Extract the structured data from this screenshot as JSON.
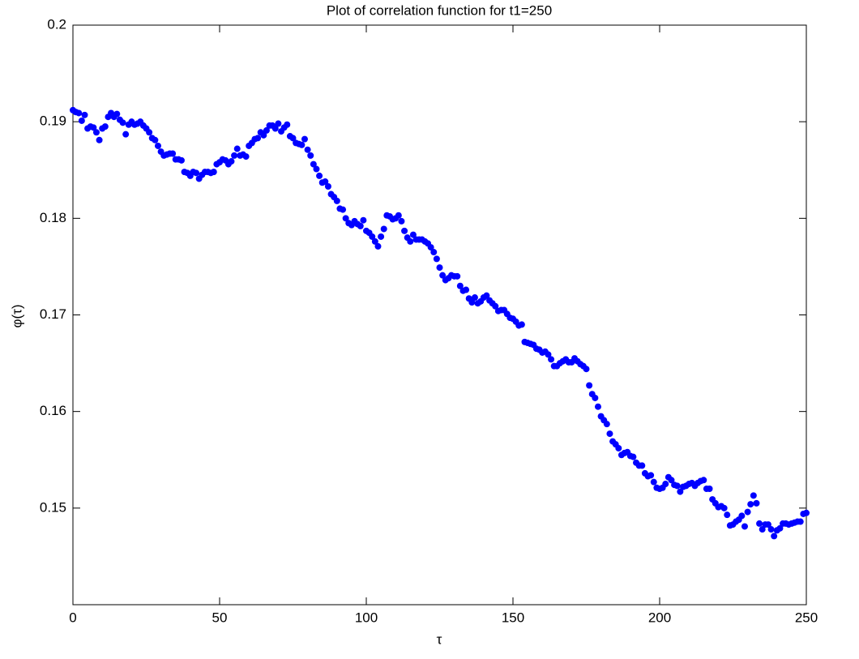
{
  "chart_data": {
    "type": "scatter",
    "title": "Plot of correlation function for t1=250",
    "x_label": "τ",
    "y_label": "φ(τ)",
    "xlim": [
      0,
      250
    ],
    "ylim": [
      0.14,
      0.2
    ],
    "xticks": [
      0,
      50,
      100,
      150,
      200,
      250
    ],
    "yticks": [
      0.15,
      0.16,
      0.17,
      0.18,
      0.19,
      0.2
    ],
    "grid": false,
    "series": [
      {
        "color": "#0000ff",
        "x": [
          0,
          1,
          2,
          3,
          4,
          5,
          6,
          7,
          8,
          9,
          10,
          11,
          12,
          13,
          14,
          15,
          16,
          17,
          18,
          19,
          20,
          21,
          22,
          23,
          24,
          25,
          26,
          27,
          28,
          29,
          30,
          31,
          32,
          33,
          34,
          35,
          36,
          37,
          38,
          39,
          40,
          41,
          42,
          43,
          44,
          45,
          46,
          47,
          48,
          49,
          50,
          51,
          52,
          53,
          54,
          55,
          56,
          57,
          58,
          59,
          60,
          61,
          62,
          63,
          64,
          65,
          66,
          67,
          68,
          69,
          70,
          71,
          72,
          73,
          74,
          75,
          76,
          77,
          78,
          79,
          80,
          81,
          82,
          83,
          84,
          85,
          86,
          87,
          88,
          89,
          90,
          91,
          92,
          93,
          94,
          95,
          96,
          97,
          98,
          99,
          100,
          101,
          102,
          103,
          104,
          105,
          106,
          107,
          108,
          109,
          110,
          111,
          112,
          113,
          114,
          115,
          116,
          117,
          118,
          119,
          120,
          121,
          122,
          123,
          124,
          125,
          126,
          127,
          128,
          129,
          130,
          131,
          132,
          133,
          134,
          135,
          136,
          137,
          138,
          139,
          140,
          141,
          142,
          143,
          144,
          145,
          146,
          147,
          148,
          149,
          150,
          151,
          152,
          153,
          154,
          155,
          156,
          157,
          158,
          159,
          160,
          161,
          162,
          163,
          164,
          165,
          166,
          167,
          168,
          169,
          170,
          171,
          172,
          173,
          174,
          175,
          176,
          177,
          178,
          179,
          180,
          181,
          182,
          183,
          184,
          185,
          186,
          187,
          188,
          189,
          190,
          191,
          192,
          193,
          194,
          195,
          196,
          197,
          198,
          199,
          200,
          201,
          202,
          203,
          204,
          205,
          206,
          207,
          208,
          209,
          210,
          211,
          212,
          213,
          214,
          215,
          216,
          217,
          218,
          219,
          220,
          221,
          222,
          223,
          224,
          225,
          226,
          227,
          228,
          229,
          230,
          231,
          232,
          233,
          234,
          235,
          236,
          237,
          238,
          239,
          240,
          241,
          242,
          243,
          244,
          245,
          246,
          247,
          248,
          249,
          250
        ],
        "values": [
          0.1912,
          0.191,
          0.1909,
          0.1901,
          0.1907,
          0.1893,
          0.1895,
          0.1894,
          0.1889,
          0.1881,
          0.1893,
          0.1895,
          0.1905,
          0.1909,
          0.1905,
          0.1908,
          0.1902,
          0.1899,
          0.1887,
          0.1897,
          0.19,
          0.1897,
          0.1898,
          0.19,
          0.1896,
          0.1893,
          0.1889,
          0.1883,
          0.1881,
          0.1875,
          0.1869,
          0.1865,
          0.1866,
          0.1867,
          0.1867,
          0.1861,
          0.1861,
          0.186,
          0.1848,
          0.1847,
          0.1844,
          0.1848,
          0.1847,
          0.1841,
          0.1845,
          0.1848,
          0.1848,
          0.1847,
          0.1848,
          0.1856,
          0.1858,
          0.1861,
          0.186,
          0.1856,
          0.1859,
          0.1865,
          0.1872,
          0.1865,
          0.1866,
          0.1864,
          0.1875,
          0.1878,
          0.1882,
          0.1883,
          0.1889,
          0.1886,
          0.1891,
          0.1896,
          0.1896,
          0.1893,
          0.1898,
          0.189,
          0.1894,
          0.1897,
          0.1885,
          0.1883,
          0.1878,
          0.1877,
          0.1876,
          0.1882,
          0.1871,
          0.1865,
          0.1856,
          0.1851,
          0.1844,
          0.1837,
          0.1838,
          0.1833,
          0.1825,
          0.1822,
          0.1818,
          0.181,
          0.1809,
          0.18,
          0.1795,
          0.1793,
          0.1797,
          0.1794,
          0.1792,
          0.1798,
          0.1787,
          0.1785,
          0.1781,
          0.1776,
          0.1771,
          0.1781,
          0.1789,
          0.1803,
          0.1802,
          0.1799,
          0.18,
          0.1803,
          0.1797,
          0.1787,
          0.178,
          0.1776,
          0.1783,
          0.1778,
          0.1778,
          0.1778,
          0.1776,
          0.1774,
          0.177,
          0.1765,
          0.1758,
          0.1749,
          0.1741,
          0.1736,
          0.1738,
          0.1741,
          0.174,
          0.174,
          0.173,
          0.1725,
          0.1726,
          0.1717,
          0.1713,
          0.1718,
          0.1712,
          0.1714,
          0.1718,
          0.172,
          0.1715,
          0.1712,
          0.1709,
          0.1704,
          0.1705,
          0.1705,
          0.1701,
          0.1697,
          0.1696,
          0.1693,
          0.1689,
          0.169,
          0.1672,
          0.1671,
          0.167,
          0.1669,
          0.1665,
          0.1664,
          0.1661,
          0.1662,
          0.1659,
          0.1654,
          0.1647,
          0.1647,
          0.165,
          0.1652,
          0.1654,
          0.1651,
          0.1651,
          0.1655,
          0.1652,
          0.1649,
          0.1647,
          0.1644,
          0.1627,
          0.1618,
          0.1614,
          0.1605,
          0.1595,
          0.1591,
          0.1587,
          0.1577,
          0.1569,
          0.1566,
          0.1562,
          0.1555,
          0.1557,
          0.1558,
          0.1554,
          0.1553,
          0.1547,
          0.1544,
          0.1544,
          0.1536,
          0.1533,
          0.1534,
          0.1527,
          0.1521,
          0.152,
          0.1521,
          0.1525,
          0.1532,
          0.1529,
          0.1524,
          0.1523,
          0.1517,
          0.1522,
          0.1523,
          0.1525,
          0.1526,
          0.1523,
          0.1526,
          0.1528,
          0.1529,
          0.152,
          0.152,
          0.1509,
          0.1505,
          0.1501,
          0.1502,
          0.15,
          0.1493,
          0.1482,
          0.1483,
          0.1486,
          0.1488,
          0.1492,
          0.1481,
          0.1496,
          0.1504,
          0.1513,
          0.1505,
          0.1484,
          0.1478,
          0.1483,
          0.1483,
          0.1478,
          0.1471,
          0.1477,
          0.1479,
          0.1484,
          0.1484,
          0.1483,
          0.1484,
          0.1485,
          0.1486,
          0.1486,
          0.1494,
          0.1495
        ]
      }
    ]
  }
}
